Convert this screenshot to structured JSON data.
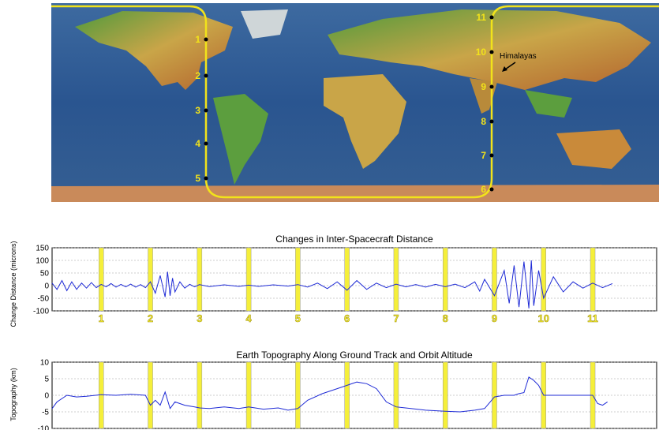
{
  "map": {
    "feature_label": "Himalayas",
    "track_labels": [
      "1",
      "2",
      "3",
      "4",
      "5",
      "6",
      "7",
      "8",
      "9",
      "10",
      "11"
    ],
    "track_color": "#f2e31a",
    "ocean_color": "#2e5a8e",
    "land_color": "#c9a548"
  },
  "chart_data": [
    {
      "type": "line",
      "title": "Changes in Inter-Spacecraft Distance",
      "ylabel": "Change Distance (microns)",
      "xlabel": "",
      "ylim": [
        -100,
        150
      ],
      "yticks": [
        -100,
        -50,
        0,
        50,
        100,
        150
      ],
      "xlim": [
        0,
        12.3
      ],
      "x_tick_labels": [
        "1",
        "2",
        "3",
        "4",
        "5",
        "6",
        "7",
        "8",
        "9",
        "10",
        "11"
      ],
      "x_tick_positions": [
        1,
        2,
        3,
        4,
        5,
        6,
        7,
        8,
        9,
        10,
        11
      ],
      "marker_positions": [
        1,
        2,
        3,
        4,
        5,
        6,
        7,
        8,
        9,
        10,
        11
      ],
      "grid": true,
      "line_color": "#1f2bd6",
      "marker_color": "#f5ef3a",
      "series": [
        {
          "x": [
            0,
            0.1,
            0.2,
            0.3,
            0.4,
            0.5,
            0.6,
            0.7,
            0.8,
            0.9,
            1.0,
            1.1,
            1.2,
            1.3,
            1.4,
            1.5,
            1.6,
            1.7,
            1.8,
            1.9,
            2.0,
            2.1,
            2.2,
            2.3,
            2.35,
            2.4,
            2.45,
            2.5,
            2.6,
            2.7,
            2.8,
            2.9,
            3.0,
            3.2,
            3.5,
            3.8,
            4.0,
            4.2,
            4.5,
            4.8,
            5.0,
            5.2,
            5.4,
            5.6,
            5.8,
            6.0,
            6.2,
            6.4,
            6.6,
            6.8,
            7.0,
            7.2,
            7.4,
            7.6,
            7.8,
            8.0,
            8.2,
            8.4,
            8.6,
            8.7,
            8.8,
            9.0,
            9.2,
            9.3,
            9.4,
            9.5,
            9.6,
            9.7,
            9.75,
            9.8,
            9.9,
            10.0,
            10.2,
            10.4,
            10.6,
            10.8,
            11.0,
            11.2,
            11.4
          ],
          "y": [
            10,
            -15,
            20,
            -20,
            15,
            -15,
            10,
            -10,
            12,
            -8,
            5,
            -5,
            8,
            -6,
            5,
            -5,
            6,
            -6,
            4,
            -8,
            15,
            -30,
            40,
            -45,
            55,
            -40,
            30,
            -25,
            15,
            -10,
            5,
            -5,
            4,
            -4,
            3,
            -3,
            2,
            -3,
            3,
            -2,
            4,
            -6,
            10,
            -12,
            15,
            -18,
            20,
            -15,
            10,
            -8,
            6,
            -5,
            4,
            -6,
            5,
            -4,
            6,
            -8,
            15,
            -22,
            25,
            -40,
            60,
            -70,
            80,
            -85,
            95,
            -90,
            100,
            -80,
            60,
            -50,
            35,
            -25,
            15,
            -10,
            10,
            -8,
            8
          ]
        }
      ]
    },
    {
      "type": "line",
      "title": "Earth Topography Along Ground Track and Orbit Altitude",
      "ylabel": "Topography (km)",
      "xlabel": "",
      "ylim": [
        -10,
        10
      ],
      "yticks": [
        -10,
        -5,
        0,
        5,
        10
      ],
      "xlim": [
        0,
        12.3
      ],
      "marker_positions": [
        1,
        2,
        3,
        4,
        5,
        6,
        7,
        8,
        9,
        10,
        11
      ],
      "grid": true,
      "line_color": "#1f2bd6",
      "marker_color": "#f5ef3a",
      "series": [
        {
          "x": [
            0,
            0.1,
            0.3,
            0.5,
            0.7,
            1.0,
            1.3,
            1.6,
            1.9,
            2.0,
            2.1,
            2.2,
            2.3,
            2.4,
            2.5,
            2.7,
            2.9,
            3.0,
            3.2,
            3.5,
            3.8,
            4.0,
            4.3,
            4.6,
            4.8,
            5.0,
            5.2,
            5.5,
            5.8,
            6.0,
            6.2,
            6.4,
            6.6,
            6.8,
            7.0,
            7.3,
            7.6,
            8.0,
            8.3,
            8.6,
            8.8,
            9.0,
            9.2,
            9.4,
            9.5,
            9.6,
            9.7,
            9.8,
            9.9,
            10.0,
            10.3,
            10.6,
            10.9,
            11.0,
            11.1,
            11.2,
            11.3
          ],
          "y": [
            -4,
            -2,
            0,
            -0.5,
            -0.3,
            0.2,
            0,
            0.3,
            0,
            -3,
            -1.5,
            -3,
            1,
            -4,
            -2,
            -3,
            -3.5,
            -3.8,
            -4,
            -3.5,
            -4,
            -3.5,
            -4.2,
            -3.8,
            -4.5,
            -4,
            -1.5,
            0.5,
            2,
            3,
            4,
            3.5,
            2,
            -2,
            -3.5,
            -4,
            -4.5,
            -4.8,
            -5,
            -4.5,
            -4,
            -0.5,
            0,
            0,
            0.5,
            0.8,
            5.5,
            4.5,
            3,
            0,
            0,
            0,
            0,
            0,
            -2.5,
            -3,
            -2
          ]
        }
      ]
    }
  ]
}
